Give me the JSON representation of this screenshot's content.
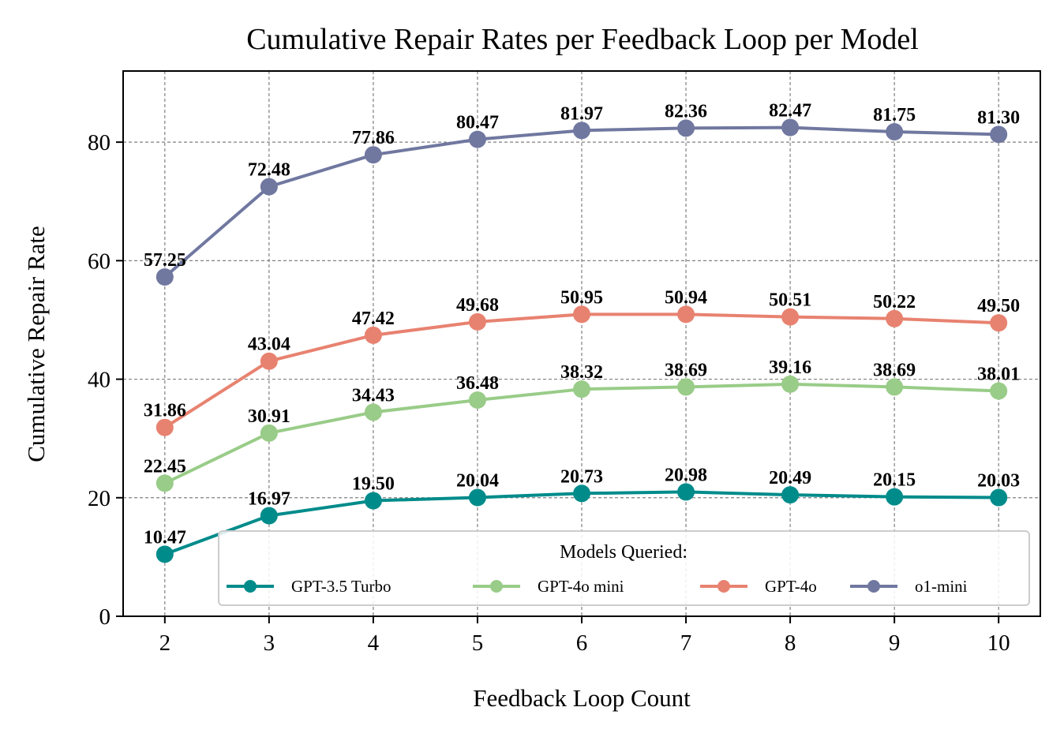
{
  "chart_data": {
    "type": "line",
    "title": "Cumulative Repair Rates per Feedback Loop per Model",
    "xlabel": "Feedback Loop Count",
    "ylabel": "Cumulative Repair Rate",
    "x": [
      2,
      3,
      4,
      5,
      6,
      7,
      8,
      9,
      10
    ],
    "x_tick_labels": [
      "2",
      "3",
      "4",
      "5",
      "6",
      "7",
      "8",
      "9",
      "10"
    ],
    "y_ticks": [
      0,
      20,
      40,
      60,
      80
    ],
    "y_tick_labels": [
      "0",
      "20",
      "40",
      "60",
      "80"
    ],
    "xlim": [
      1.6,
      10.4
    ],
    "ylim": [
      0,
      92
    ],
    "grid": true,
    "legend": {
      "title": "Models Queried:",
      "placement": "lower-right",
      "columns": 4
    },
    "series": [
      {
        "name": "GPT-3.5 Turbo",
        "color": "#008b8b",
        "values": [
          10.47,
          16.97,
          19.5,
          20.04,
          20.73,
          20.98,
          20.49,
          20.15,
          20.03
        ],
        "labels": [
          "10.47",
          "16.97",
          "19.50",
          "20.04",
          "20.73",
          "20.98",
          "20.49",
          "20.15",
          "20.03"
        ]
      },
      {
        "name": "GPT-4o mini",
        "color": "#99cc88",
        "values": [
          22.45,
          30.91,
          34.43,
          36.48,
          38.32,
          38.69,
          39.16,
          38.69,
          38.01
        ],
        "labels": [
          "22.45",
          "30.91",
          "34.43",
          "36.48",
          "38.32",
          "38.69",
          "39.16",
          "38.69",
          "38.01"
        ]
      },
      {
        "name": "GPT-4o",
        "color": "#e88270",
        "values": [
          31.86,
          43.04,
          47.42,
          49.68,
          50.95,
          50.94,
          50.51,
          50.22,
          49.5
        ],
        "labels": [
          "31.86",
          "43.04",
          "47.42",
          "49.68",
          "50.95",
          "50.94",
          "50.51",
          "50.22",
          "49.50"
        ]
      },
      {
        "name": "o1-mini",
        "color": "#7078a0",
        "values": [
          57.25,
          72.48,
          77.86,
          80.47,
          81.97,
          82.36,
          82.47,
          81.75,
          81.3
        ],
        "labels": [
          "57.25",
          "72.48",
          "77.86",
          "80.47",
          "81.97",
          "82.36",
          "82.47",
          "81.75",
          "81.30"
        ]
      }
    ]
  }
}
